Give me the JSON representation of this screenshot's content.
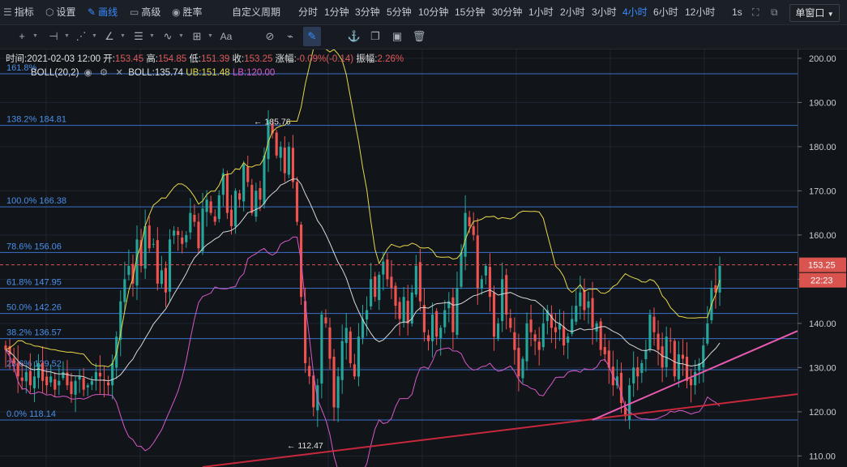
{
  "topbar": {
    "left_items": [
      {
        "icon": "indicator-icon",
        "glyph": "☰",
        "label": "指标",
        "active": false
      },
      {
        "icon": "gear-icon",
        "glyph": "⬡",
        "label": "设置",
        "active": false
      },
      {
        "icon": "pencil-icon",
        "glyph": "✎",
        "label": "画线",
        "active": true
      },
      {
        "icon": "briefcase-icon",
        "glyph": "▭",
        "label": "高级",
        "active": false
      },
      {
        "icon": "target-icon",
        "glyph": "◉",
        "label": "胜率",
        "active": false
      }
    ],
    "custom_period": "自定义周期",
    "periods": [
      "分时",
      "1分钟",
      "3分钟",
      "5分钟",
      "10分钟",
      "15分钟",
      "30分钟",
      "1小时",
      "2小时",
      "3小时",
      "4小时",
      "6小时",
      "12小时"
    ],
    "active_period": "4小时",
    "extra": "1s",
    "window_mode": "单窗口"
  },
  "toolbar": {
    "tools": [
      "crosshair-icon",
      "horizontal-line-icon",
      "trend-line-icon",
      "angle-icon",
      "parallel-lines-icon",
      "wave-icon",
      "fib-grid-icon",
      "text-tool-icon",
      "magnet-icon",
      "ruler-icon",
      "pen-icon",
      "anchor-icon",
      "copy-icon",
      "image-icon",
      "trash-icon"
    ],
    "text_tool_label": "Aa"
  },
  "info": {
    "time_label": "时间:",
    "time": "2021-02-03 12:00",
    "open_label": "开:",
    "open": "153.45",
    "high_label": "高:",
    "high": "154.85",
    "low_label": "低:",
    "low": "151.39",
    "close_label": "收:",
    "close": "153.25",
    "change_label": "涨幅:",
    "change": "-0.09%(-0.14)",
    "amplitude_label": "振幅:",
    "amplitude": "2.26%"
  },
  "boll": {
    "name": "BOLL(20,2)",
    "mid": "135.74",
    "ub_label": "UB:",
    "ub": "151.48",
    "lb_label": "LB:",
    "lb": "120.00"
  },
  "price_tag": "153.25",
  "time_tag": "22:23",
  "colors": {
    "up": "#26a69a",
    "down": "#ef5350",
    "boll_mid": "#d8d8d8",
    "boll_ub": "#e6d84a",
    "boll_lb": "#d659c8",
    "fib": "#3a6fc8",
    "trend_pink": "#e85ab0",
    "trend_red": "#c8283c",
    "price_tag": "#d9534f"
  },
  "chart_data": {
    "type": "candlestick",
    "ylim": [
      107.5,
      202
    ],
    "yticks": [
      110,
      120,
      130,
      140,
      150,
      160,
      170,
      180,
      190,
      200
    ],
    "ytick_labels": [
      "110.00",
      "120.00",
      "130.00",
      "140.00",
      "150.00",
      "160.00",
      "170.00",
      "180.00",
      "190.00",
      "200.00"
    ],
    "fib_levels": [
      {
        "label": "161.8%",
        "value": 196.5
      },
      {
        "label": "138.2% 184.81",
        "value": 184.81
      },
      {
        "label": "100.0% 166.38",
        "value": 166.38
      },
      {
        "label": "78.6% 156.06",
        "value": 156.06
      },
      {
        "label": "61.8% 147.95",
        "value": 147.95
      },
      {
        "label": "50.0% 142.26",
        "value": 142.26
      },
      {
        "label": "38.2% 136.57",
        "value": 136.57
      },
      {
        "label": "23.6% 129.52",
        "value": 129.52
      },
      {
        "label": "0.0% 118.14",
        "value": 118.14
      }
    ],
    "last_price": 153.25,
    "high_marker": {
      "label": "← 185.76",
      "value": 185.76
    },
    "low_marker": {
      "label": "← 112.47",
      "value": 112.47
    },
    "closes": [
      134,
      133,
      131,
      128,
      127,
      129,
      126,
      128,
      131,
      127,
      126,
      128,
      125,
      127,
      129,
      126,
      124,
      127,
      128,
      125,
      126,
      127,
      129,
      128,
      127,
      126,
      131,
      137,
      145,
      150,
      153,
      149,
      159,
      153,
      162,
      157,
      158,
      149,
      152,
      147,
      159,
      161,
      160,
      158,
      160,
      165,
      163,
      157,
      166,
      168,
      165,
      163,
      169,
      174,
      165,
      162,
      170,
      168,
      176,
      172,
      165,
      170,
      168,
      178,
      186,
      183,
      178,
      180,
      174,
      180,
      172,
      163,
      146,
      131,
      128,
      121,
      126,
      142,
      140,
      132,
      121,
      128,
      136,
      139,
      131,
      128,
      137,
      141,
      143,
      150,
      146,
      151,
      154,
      150,
      148,
      144,
      141,
      146,
      140,
      147,
      153,
      145,
      138,
      136,
      142,
      137,
      139,
      143,
      145,
      138,
      148,
      156,
      165,
      162,
      160,
      148,
      150,
      153,
      146,
      137,
      140,
      150,
      142,
      139,
      134,
      128,
      132,
      140,
      138,
      136,
      134,
      140,
      143,
      139,
      138,
      140,
      135,
      137,
      141,
      144,
      147,
      143,
      145,
      139,
      140,
      134,
      133,
      130,
      126,
      128,
      122,
      119,
      126,
      130,
      128,
      131,
      134,
      142,
      138,
      134,
      130,
      137,
      136,
      128,
      133,
      132,
      127,
      126,
      129,
      131,
      135,
      140,
      148,
      147,
      153
    ]
  }
}
